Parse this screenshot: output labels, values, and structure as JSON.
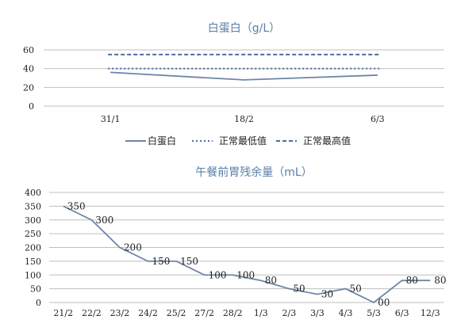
{
  "chart_data": [
    {
      "type": "line",
      "title": "白蛋白（g/L）",
      "categories": [
        "31/1",
        "18/2",
        "6/3"
      ],
      "ylim": [
        0,
        60
      ],
      "yticks": [
        0,
        20,
        40,
        60
      ],
      "grid": true,
      "legend": "bottom",
      "series": [
        {
          "name": "白蛋白",
          "values": [
            36,
            28,
            33
          ],
          "style": "solid",
          "color": "#6e85a8"
        },
        {
          "name": "正常最低值",
          "values": [
            40,
            40,
            40
          ],
          "style": "dotted",
          "color": "#4a6da3"
        },
        {
          "name": "正常最高值",
          "values": [
            55,
            55,
            55
          ],
          "style": "dashed",
          "color": "#4a6da3"
        }
      ]
    },
    {
      "type": "line",
      "title": "午餐前胃残余量（mL）",
      "categories": [
        "21/2",
        "22/2",
        "23/2",
        "24/2",
        "25/2",
        "27/2",
        "28/2",
        "1/3",
        "2/3",
        "3/3",
        "4/3",
        "5/3",
        "6/3",
        "12/3"
      ],
      "values": [
        350,
        300,
        200,
        150,
        150,
        100,
        100,
        80,
        50,
        30,
        50,
        0,
        80,
        80
      ],
      "data_labels": [
        "350",
        "300",
        "200",
        "150",
        "150",
        "100",
        "100",
        "80",
        "50",
        "30",
        "50",
        "00",
        "80",
        "80"
      ],
      "ylim": [
        0,
        400
      ],
      "yticks": [
        0,
        50,
        100,
        150,
        200,
        250,
        300,
        350,
        400
      ],
      "grid": true,
      "color": "#6e85a8"
    }
  ]
}
